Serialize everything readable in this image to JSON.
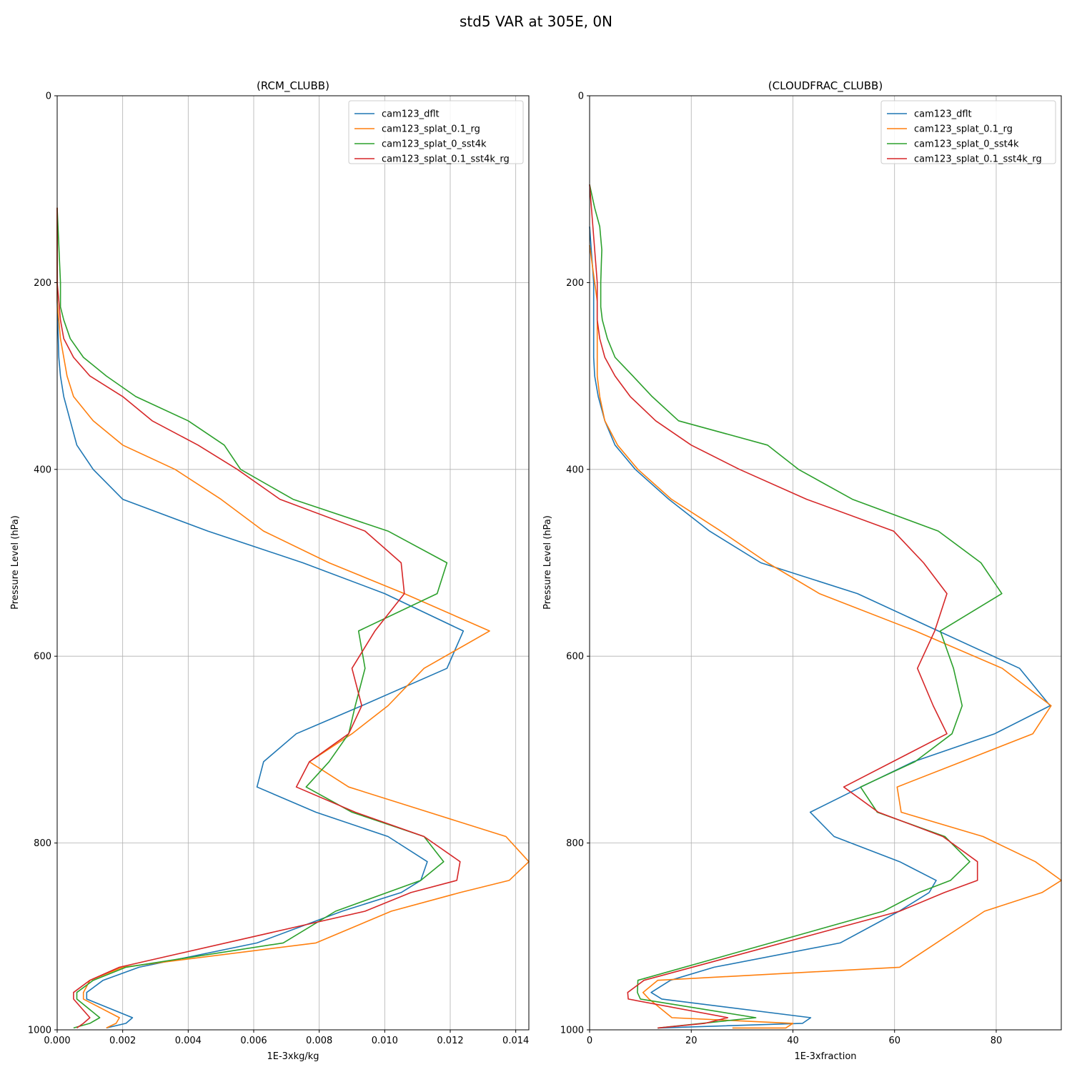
{
  "figure": {
    "title": "std5 VAR at 305E, 0N"
  },
  "chart_data": [
    {
      "type": "line",
      "title": "(RCM_CLUBB)",
      "xlabel": "1E-3xkg/kg",
      "ylabel": "Pressure Level (hPa)",
      "xlim": [
        0,
        0.0144
      ],
      "ylim": [
        1000,
        0
      ],
      "xticks": [
        0,
        0.002,
        0.004,
        0.006,
        0.008,
        0.01,
        0.012,
        0.014
      ],
      "xtick_labels": [
        "0.000",
        "0.002",
        "0.004",
        "0.006",
        "0.008",
        "0.010",
        "0.012",
        "0.014"
      ],
      "yticks": [
        0,
        200,
        400,
        600,
        800,
        1000
      ],
      "ytick_labels": [
        "0",
        "200",
        "400",
        "600",
        "800",
        "1000"
      ],
      "grid": true,
      "legend": "upper right",
      "series": [
        {
          "name": "cam123_dflt",
          "color": "#1f77b4",
          "x": [
            0,
            0,
            5e-05,
            0.0001,
            0.0002,
            0.0004,
            0.0006,
            0.0011,
            0.002,
            0.0046,
            0.0075,
            0.01,
            0.0124,
            0.0119,
            0.0093,
            0.0073,
            0.0063,
            0.0061,
            0.0079,
            0.0101,
            0.0113,
            0.0111,
            0.0105,
            0.0087,
            0.0061,
            0.0025,
            0.0014,
            0.0009,
            0.0009,
            0.0023,
            0.0021,
            0.0015
          ],
          "y": [
            120,
            220,
            280,
            300,
            322,
            348,
            374,
            400,
            432,
            466,
            500,
            533,
            573,
            613,
            653,
            683,
            713,
            740,
            767,
            793,
            820,
            840,
            853,
            873,
            907,
            933,
            947,
            960,
            967,
            987,
            993,
            998
          ]
        },
        {
          "name": "cam123_splat_0.1_rg",
          "color": "#ff7f0e",
          "x": [
            0,
            0,
            0.0001,
            0.0002,
            0.0003,
            0.0005,
            0.0011,
            0.002,
            0.0036,
            0.005,
            0.0063,
            0.0083,
            0.0106,
            0.0132,
            0.0112,
            0.0101,
            0.009,
            0.0077,
            0.0089,
            0.0137,
            0.0144,
            0.0138,
            0.0123,
            0.0102,
            0.0079,
            0.002,
            0.001,
            0.0008,
            0.0008,
            0.0019,
            0.0018,
            0.0015
          ],
          "y": [
            120,
            220,
            260,
            280,
            300,
            322,
            348,
            374,
            400,
            432,
            466,
            500,
            533,
            573,
            613,
            653,
            683,
            713,
            740,
            793,
            820,
            840,
            853,
            873,
            907,
            933,
            947,
            960,
            967,
            987,
            993,
            998
          ]
        },
        {
          "name": "cam123_splat_0_sst4k",
          "color": "#2ca02c",
          "x": [
            0,
            0.0001,
            0.0001,
            0.0002,
            0.0004,
            0.0008,
            0.0015,
            0.0024,
            0.004,
            0.0051,
            0.0056,
            0.0072,
            0.0101,
            0.0119,
            0.0116,
            0.0092,
            0.0094,
            0.0091,
            0.0089,
            0.0083,
            0.0076,
            0.009,
            0.0112,
            0.0118,
            0.0111,
            0.0085,
            0.0069,
            0.0021,
            0.0011,
            0.0006,
            0.0006,
            0.0013,
            0.001,
            0.0005
          ],
          "y": [
            120,
            200,
            226,
            240,
            260,
            280,
            300,
            322,
            348,
            374,
            400,
            432,
            466,
            500,
            533,
            573,
            613,
            653,
            683,
            713,
            740,
            767,
            793,
            820,
            840,
            873,
            907,
            933,
            947,
            960,
            967,
            987,
            993,
            998
          ]
        },
        {
          "name": "cam123_splat_0.1_sst4k_rg",
          "color": "#d62728",
          "x": [
            0,
            0,
            0.0001,
            0.0002,
            0.0005,
            0.001,
            0.002,
            0.0029,
            0.0043,
            0.0055,
            0.0068,
            0.0094,
            0.0105,
            0.0106,
            0.0097,
            0.009,
            0.0093,
            0.0089,
            0.0077,
            0.0073,
            0.0091,
            0.0112,
            0.0123,
            0.0122,
            0.0108,
            0.0094,
            0.0019,
            0.001,
            0.0005,
            0.0005,
            0.001,
            0.0008,
            0.0006
          ],
          "y": [
            120,
            200,
            240,
            260,
            280,
            300,
            322,
            348,
            374,
            400,
            432,
            466,
            500,
            533,
            573,
            613,
            653,
            683,
            713,
            740,
            767,
            793,
            820,
            840,
            853,
            873,
            933,
            947,
            960,
            967,
            987,
            993,
            998
          ]
        }
      ]
    },
    {
      "type": "line",
      "title": "(CLOUDFRAC_CLUBB)",
      "xlabel": "1E-3xfraction",
      "ylabel": "Pressure Level (hPa)",
      "xlim": [
        0,
        92.8
      ],
      "ylim": [
        1000,
        0
      ],
      "xticks": [
        0,
        20,
        40,
        60,
        80
      ],
      "xtick_labels": [
        "0",
        "20",
        "40",
        "60",
        "80"
      ],
      "yticks": [
        0,
        200,
        400,
        600,
        800,
        1000
      ],
      "ytick_labels": [
        "0",
        "200",
        "400",
        "600",
        "800",
        "1000"
      ],
      "grid": true,
      "legend": "upper right",
      "series": [
        {
          "name": "cam123_dflt",
          "color": "#1f77b4",
          "x": [
            0,
            0.8,
            0.8,
            0.8,
            0.8,
            0.8,
            1.0,
            1.7,
            3.0,
            5.0,
            9.0,
            15.6,
            23.6,
            33.7,
            52.7,
            68.6,
            84.6,
            90.6,
            79.7,
            63.7,
            53.4,
            43.4,
            48.1,
            61.0,
            68.2,
            66.8,
            60.9,
            49.3,
            24.5,
            15.9,
            12.1,
            14.2,
            43.5,
            41.9,
            13.4
          ],
          "y": [
            140,
            200,
            220,
            240,
            260,
            280,
            300,
            322,
            348,
            374,
            400,
            432,
            466,
            500,
            533,
            573,
            613,
            653,
            683,
            713,
            740,
            767,
            793,
            820,
            840,
            853,
            873,
            907,
            933,
            947,
            960,
            967,
            987,
            993,
            998
          ]
        },
        {
          "name": "cam123_splat_0.1_rg",
          "color": "#ff7f0e",
          "x": [
            0,
            1.5,
            1.5,
            1.5,
            1.5,
            1.5,
            2.0,
            3.0,
            5.5,
            9.5,
            16.1,
            25.8,
            35.0,
            45.2,
            64.1,
            81.2,
            90.8,
            87.2,
            73.2,
            60.5,
            61.3,
            77.4,
            87.7,
            92.8,
            89.0,
            77.7,
            61.0,
            13.4,
            10.5,
            11.7,
            16.2,
            40.0,
            38.6,
            28.1
          ],
          "y": [
            160,
            220,
            240,
            260,
            280,
            300,
            322,
            348,
            374,
            400,
            432,
            466,
            500,
            533,
            573,
            613,
            653,
            683,
            713,
            740,
            767,
            793,
            820,
            840,
            853,
            873,
            933,
            947,
            960,
            967,
            987,
            993,
            998,
            998
          ]
        },
        {
          "name": "cam123_splat_0_sst4k",
          "color": "#2ca02c",
          "x": [
            0,
            1.0,
            2.0,
            2.4,
            2.3,
            2.2,
            2.2,
            2.5,
            3.5,
            5.0,
            8.5,
            12.3,
            17.5,
            35.0,
            41.1,
            51.7,
            68.6,
            77.0,
            81.1,
            69.0,
            71.6,
            73.3,
            71.3,
            64.0,
            53.3,
            56.6,
            69.9,
            74.8,
            71.0,
            64.8,
            57.8,
            9.5,
            9.4,
            10.0,
            32.7,
            13.4
          ],
          "y": [
            95,
            120,
            140,
            165,
            180,
            200,
            226,
            240,
            260,
            280,
            300,
            322,
            348,
            374,
            400,
            432,
            466,
            500,
            533,
            573,
            613,
            653,
            683,
            713,
            740,
            767,
            793,
            820,
            840,
            853,
            873,
            947,
            960,
            967,
            987,
            998
          ]
        },
        {
          "name": "cam123_splat_0.1_sst4k_rg",
          "color": "#d62728",
          "x": [
            0,
            1.5,
            1.5,
            1.5,
            2.0,
            3.0,
            5.0,
            8.0,
            13.0,
            20.0,
            29.5,
            42.7,
            59.8,
            65.7,
            70.3,
            67.9,
            64.5,
            67.6,
            70.3,
            50.0,
            56.8,
            69.5,
            76.3,
            76.3,
            69.8,
            61.0,
            10.7,
            7.5,
            7.6,
            27.2,
            22.7,
            13.4
          ],
          "y": [
            95,
            200,
            220,
            240,
            260,
            280,
            300,
            322,
            348,
            374,
            400,
            432,
            466,
            500,
            533,
            573,
            613,
            653,
            683,
            740,
            767,
            793,
            820,
            840,
            853,
            873,
            947,
            960,
            967,
            987,
            993,
            998
          ]
        }
      ]
    }
  ]
}
